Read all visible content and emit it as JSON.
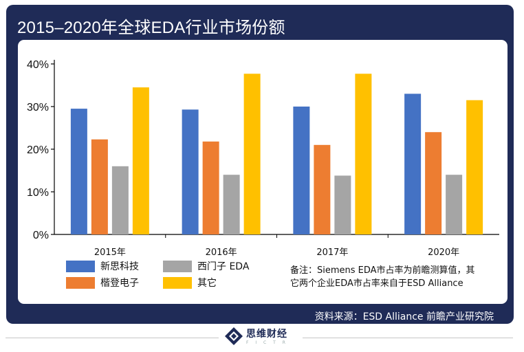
{
  "title": "2015–2020年全球EDA行业市场份额",
  "chart_data": {
    "type": "bar",
    "title": "2015–2020年全球EDA行业市场份额",
    "categories": [
      "2015年",
      "2016年",
      "2017年",
      "2020年"
    ],
    "series": [
      {
        "name": "新思科技",
        "color": "#4472c4",
        "values": [
          29.5,
          29.3,
          30.0,
          33.0
        ]
      },
      {
        "name": "楷登电子",
        "color": "#ed7d31",
        "values": [
          22.3,
          21.8,
          21.0,
          24.0
        ]
      },
      {
        "name": "西门子 EDA",
        "color": "#a5a5a5",
        "values": [
          16.0,
          14.0,
          13.8,
          14.0
        ]
      },
      {
        "name": "其它",
        "color": "#ffc000",
        "values": [
          34.5,
          37.7,
          37.7,
          31.5
        ]
      }
    ],
    "ylim": [
      0,
      40
    ],
    "yticks": [
      0,
      10,
      20,
      30,
      40
    ],
    "ytick_labels": [
      "0%",
      "10%",
      "20%",
      "30%",
      "40%"
    ],
    "xlabel": "",
    "ylabel": "",
    "legend": "bottom-left"
  },
  "note": {
    "line1": "备注：Siemens EDA市占率为前瞻测算值，其",
    "line2": "它两个企业EDA市占率来自于ESD Alliance"
  },
  "source": "资料来源：ESD Alliance 前瞻产业研究院",
  "logo": {
    "name": "思维财经",
    "sub": "F I C T R"
  }
}
